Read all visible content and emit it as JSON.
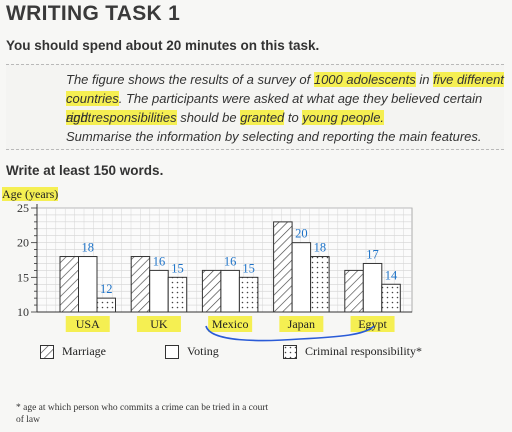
{
  "page": {
    "title": "WRITING TASK 1",
    "intro": "You should spend about 20 minutes on this task.",
    "task": {
      "l1_a": "The figure shows the results of a survey of ",
      "l1_b": "1000 adolescents",
      "l1_c": " in ",
      "l1_d": "five different",
      "l2_a": "countries",
      "l2_b": ". The participants were asked at what age they believed certain ",
      "l2_c": "rights",
      "l3_a": "and ",
      "l3_b": "responsibilities",
      "l3_c": " should be ",
      "l3_d": "granted",
      "l3_e": " to ",
      "l3_f": "young people.",
      "l4": "Summarise the information by selecting and reporting the main features."
    },
    "words": "Write at least 150 words.",
    "footnote": "* age at which person who commits a crime can be tried in a court of law",
    "highlight_color": "#f5ef52",
    "annotation_color": "#2a5bd7"
  },
  "chart_data": {
    "type": "bar",
    "ylabel": "Age (years)",
    "ylim": [
      10,
      25
    ],
    "yticks": [
      10,
      15,
      20,
      25
    ],
    "categories": [
      "USA",
      "UK",
      "Mexico",
      "Japan",
      "Egypt"
    ],
    "series": [
      {
        "name": "Marriage",
        "values": [
          18,
          18,
          16,
          23,
          16
        ],
        "pattern": "hatch"
      },
      {
        "name": "Voting",
        "values": [
          18,
          16,
          16,
          20,
          17
        ],
        "pattern": "plain"
      },
      {
        "name": "Criminal responsibility*",
        "values": [
          12,
          15,
          15,
          18,
          14
        ],
        "pattern": "dots"
      }
    ],
    "data_labels": [
      {
        "series": 1,
        "category": 0,
        "text": "18"
      },
      {
        "series": 2,
        "category": 0,
        "text": "12"
      },
      {
        "series": 1,
        "category": 1,
        "text": "16"
      },
      {
        "series": 2,
        "category": 1,
        "text": "15"
      },
      {
        "series": 1,
        "category": 2,
        "text": "16"
      },
      {
        "series": 2,
        "category": 2,
        "text": "15"
      },
      {
        "series": 1,
        "category": 3,
        "text": "20"
      },
      {
        "series": 2,
        "category": 3,
        "text": "18"
      },
      {
        "series": 1,
        "category": 4,
        "text": "17"
      },
      {
        "series": 2,
        "category": 4,
        "text": "14"
      }
    ],
    "grid": true,
    "legend_position": "bottom"
  }
}
